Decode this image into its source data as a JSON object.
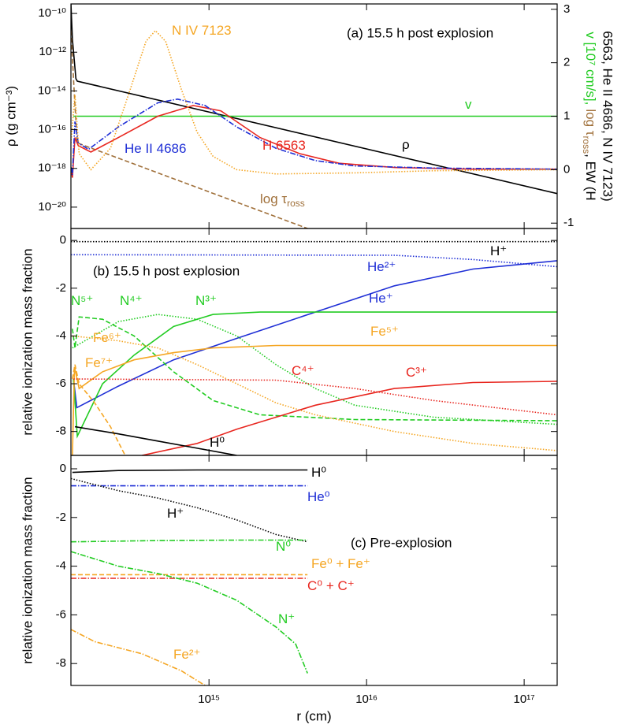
{
  "chart_data": [
    {
      "type": "line",
      "annotation": "(a) 15.5 h post explosion",
      "y_label": "ρ  (g cm⁻³)",
      "y2_label_parts": [
        "v [10⁷ cm/s],",
        "log τ",
        "ross",
        ", EW (H"
      ],
      "y2_label_line2": "6563, He II 4686, N IV 7123)",
      "ylog": true,
      "ylim": [
        7.9e-22,
        3.1e-10
      ],
      "yticks": [
        {
          "value": 1e-10,
          "label": "10⁻¹⁰"
        },
        {
          "value": 1e-12,
          "label": "10⁻¹²"
        },
        {
          "value": 1e-14,
          "label": "10⁻¹⁴"
        },
        {
          "value": 1e-16,
          "label": "10⁻¹⁶"
        },
        {
          "value": 1e-18,
          "label": "10⁻¹⁸"
        },
        {
          "value": 1e-20,
          "label": "10⁻²⁰"
        }
      ],
      "y2lim": [
        -1.1,
        3.1
      ],
      "y2ticks": [
        -1,
        0,
        1,
        2,
        3
      ],
      "series": [
        {
          "name": "ρ",
          "color": "#000000",
          "dash": "solid",
          "axis": "y",
          "x": [
            133000000000000.0,
            136000000000000.0,
            143000000000000.0,
            146000000000000.0,
            1.62e+17
          ],
          "values": [
            3.1e-10,
            4.6e-12,
            4.3e-14,
            3.2e-14,
            5e-20
          ]
        },
        {
          "name": "log τ",
          "name_sub": "ross",
          "color": "#a0703a",
          "dash": "dashed",
          "axis": "y2",
          "x": [
            133000000000000.0,
            141000000000000.0,
            146000000000000.0,
            4220000000000000.0
          ],
          "values": [
            2.6,
            1.2,
            0.5,
            -1.1
          ]
        },
        {
          "name": "v",
          "color": "#22cc22",
          "dash": "solid",
          "axis": "y2",
          "x": [
            138000000000000.0,
            1.62e+17
          ],
          "values": [
            1.0,
            1.0
          ]
        },
        {
          "name": "H 6563",
          "color": "#e8261f",
          "dash": "solid",
          "axis": "y2",
          "x": [
            133000000000000.0,
            136000000000000.0,
            141000000000000.0,
            148000000000000.0,
            178000000000000.0,
            266000000000000.0,
            473000000000000.0,
            794000000000000.0,
            1190000000000000.0,
            2110000000000000.0,
            3760000000000000.0,
            6680000000000000.0,
            1.5e+16,
            4.73e+16,
            1.62e+17
          ],
          "values": [
            0.05,
            -0.15,
            0.6,
            0.45,
            0.33,
            0.6,
            1.0,
            1.2,
            1.1,
            0.6,
            0.3,
            0.12,
            0.04,
            0.01,
            0.01
          ]
        },
        {
          "name": "He II 4686",
          "color": "#1f2fd6",
          "dash": "dashdot",
          "axis": "y2",
          "x": [
            133000000000000.0,
            136000000000000.0,
            141000000000000.0,
            148000000000000.0,
            172000000000000.0,
            266000000000000.0,
            473000000000000.0,
            631000000000000.0,
            944000000000000.0,
            1500000000000000.0,
            2660000000000000.0,
            4730000000000000.0,
            8410000000000000.0,
            2.66e+16,
            1.62e+17
          ],
          "values": [
            0.05,
            -0.1,
            0.9,
            0.5,
            0.38,
            0.8,
            1.25,
            1.32,
            1.2,
            0.8,
            0.4,
            0.17,
            0.07,
            0.03,
            0.01
          ]
        },
        {
          "name": "N IV 7123",
          "color": "#f5a623",
          "dash": "dotted",
          "axis": "y2",
          "x": [
            133000000000000.0,
            141000000000000.0,
            150000000000000.0,
            178000000000000.0,
            237000000000000.0,
            316000000000000.0,
            398000000000000.0,
            457000000000000.0,
            531000000000000.0,
            668000000000000.0,
            841000000000000.0,
            1060000000000000.0,
            1500000000000000.0,
            2660000000000000.0,
            8410000000000000.0,
            2.66e+16,
            1.62e+17
          ],
          "values": [
            0.5,
            1.4,
            0.3,
            0.0,
            0.4,
            1.5,
            2.4,
            2.6,
            2.4,
            1.5,
            0.7,
            0.25,
            0.0,
            -0.08,
            -0.06,
            -0.02,
            0.0
          ]
        }
      ]
    },
    {
      "type": "line",
      "annotation": "(b) 15.5 h post explosion",
      "y_label": "relative ionization mass fraction",
      "ylim": [
        -9,
        0.5
      ],
      "yticks": [
        -8,
        -6,
        -4,
        -2,
        0
      ],
      "series": [
        {
          "name": "H⁺",
          "color": "#000000",
          "dash": "dotted",
          "x": [
            133000000000000.0,
            1.62e+17
          ],
          "values": [
            -0.05,
            -0.05
          ]
        },
        {
          "name": "He²⁺",
          "color": "#1f2fd6",
          "dash": "dotted",
          "x": [
            133000000000000.0,
            1.5e+16,
            4.73e+16,
            1.62e+17
          ],
          "values": [
            -0.6,
            -0.62,
            -0.8,
            -1.1
          ]
        },
        {
          "name": "He⁺",
          "color": "#1f2fd6",
          "dash": "solid",
          "x": [
            138000000000000.0,
            145000000000000.0,
            266000000000000.0,
            596000000000000.0,
            1500000000000000.0,
            4730000000000000.0,
            1.5e+16,
            4.73e+16,
            1.62e+17
          ],
          "values": [
            -5.8,
            -7.0,
            -6.1,
            -5.0,
            -4.1,
            -3.0,
            -1.9,
            -1.2,
            -0.85
          ]
        },
        {
          "name": "N⁵⁺",
          "color": "#22cc22",
          "dash": "dashed",
          "x": [
            136000000000000.0,
            141000000000000.0,
            150000000000000.0,
            211000000000000.0,
            335000000000000.0,
            596000000000000.0,
            1060000000000000.0,
            2110000000000000.0,
            8410000000000000.0,
            1.62e+17
          ],
          "values": [
            -3.7,
            -4.5,
            -3.2,
            -3.3,
            -4.0,
            -5.5,
            -6.7,
            -7.3,
            -7.5,
            -7.55
          ]
        },
        {
          "name": "N⁴⁺",
          "color": "#22cc22",
          "dash": "dotted",
          "x": [
            136000000000000.0,
            266000000000000.0,
            473000000000000.0,
            841000000000000.0,
            1500000000000000.0,
            2660000000000000.0,
            4730000000000000.0,
            8410000000000000.0,
            2.66e+16,
            1.62e+17
          ],
          "values": [
            -4.5,
            -3.4,
            -3.1,
            -3.3,
            -4.0,
            -5.2,
            -6.2,
            -6.9,
            -7.4,
            -7.7
          ]
        },
        {
          "name": "N³⁺",
          "color": "#22cc22",
          "dash": "solid",
          "x": [
            138000000000000.0,
            146000000000000.0,
            211000000000000.0,
            335000000000000.0,
            596000000000000.0,
            1060000000000000.0,
            2110000000000000.0,
            1.62e+17
          ],
          "values": [
            -5.8,
            -8.2,
            -6.0,
            -4.8,
            -3.6,
            -3.1,
            -3.0,
            -3.0
          ]
        },
        {
          "name": "Fe⁵⁺",
          "color": "#f5a623",
          "dash": "solid",
          "x": [
            136000000000000.0,
            140000000000000.0,
            150000000000000.0,
            211000000000000.0,
            335000000000000.0,
            596000000000000.0,
            1060000000000000.0,
            2660000000000000.0,
            1.62e+17
          ],
          "values": [
            -9,
            -5.3,
            -6.2,
            -5.5,
            -5.0,
            -4.7,
            -4.5,
            -4.4,
            -4.4
          ]
        },
        {
          "name": "Fe⁶⁺",
          "color": "#f5a623",
          "dash": "dotted",
          "x": [
            136000000000000.0,
            266000000000000.0,
            473000000000000.0,
            841000000000000.0,
            1500000000000000.0,
            2660000000000000.0,
            4730000000000000.0,
            1.5e+16,
            4.73e+16,
            1.62e+17
          ],
          "values": [
            -4.0,
            -4.2,
            -4.5,
            -5.2,
            -6.0,
            -6.8,
            -7.3,
            -8.0,
            -8.5,
            -8.8
          ]
        },
        {
          "name": "Fe⁷⁺",
          "color": "#f5a623",
          "dash": "dashed",
          "x": [
            136000000000000.0,
            141000000000000.0,
            150000000000000.0,
            188000000000000.0,
            237000000000000.0,
            299000000000000.0
          ],
          "values": [
            -5.8,
            -5.2,
            -6.0,
            -6.8,
            -7.8,
            -9.1
          ]
        },
        {
          "name": "C⁴⁺",
          "color": "#e8261f",
          "dash": "dotted",
          "x": [
            138000000000000.0,
            2660000000000000.0,
            8410000000000000.0,
            2.66e+16,
            1.62e+17
          ],
          "values": [
            -5.8,
            -5.85,
            -6.2,
            -6.7,
            -7.3
          ]
        },
        {
          "name": "C³⁺",
          "color": "#e8261f",
          "dash": "solid",
          "x": [
            376000000000000.0,
            841000000000000.0,
            1500000000000000.0,
            4730000000000000.0,
            1.5e+16,
            4.73e+16,
            1.62e+17
          ],
          "values": [
            -9,
            -8.5,
            -7.9,
            -6.9,
            -6.2,
            -5.95,
            -5.9
          ]
        },
        {
          "name": "H⁰",
          "color": "#000000",
          "dash": "solid",
          "x": [
            141000000000000.0,
            266000000000000.0,
            473000000000000.0,
            841000000000000.0,
            1500000000000000.0
          ],
          "values": [
            -7.8,
            -8.1,
            -8.4,
            -8.7,
            -9.0
          ]
        }
      ]
    },
    {
      "type": "line",
      "annotation": "(c) Pre-explosion",
      "y_label": "relative ionization mass fraction",
      "x_label": "r (cm)",
      "xlog": true,
      "xlim": [
        133000000000000.0,
        1.62e+17
      ],
      "xticks": [
        {
          "value": 1000000000000000.0,
          "label": "10¹⁵"
        },
        {
          "value": 1e+16,
          "label": "10¹⁶"
        },
        {
          "value": 1e+17,
          "label": "10¹⁷"
        }
      ],
      "ylim": [
        -8.9,
        0.55
      ],
      "yticks": [
        -8,
        -6,
        -4,
        -2,
        0
      ],
      "series": [
        {
          "name": "H⁰",
          "color": "#000000",
          "dash": "solid",
          "x": [
            136000000000000.0,
            266000000000000.0,
            841000000000000.0,
            4220000000000000.0
          ],
          "values": [
            -0.15,
            -0.07,
            -0.05,
            -0.05
          ]
        },
        {
          "name": "He⁰",
          "color": "#1f2fd6",
          "dash": "dashdot",
          "x": [
            133000000000000.0,
            4220000000000000.0
          ],
          "values": [
            -0.7,
            -0.7
          ]
        },
        {
          "name": "H⁺",
          "color": "#000000",
          "dash": "dotted",
          "x": [
            133000000000000.0,
            266000000000000.0,
            473000000000000.0,
            841000000000000.0,
            1500000000000000.0,
            2660000000000000.0,
            4220000000000000.0
          ],
          "values": [
            -0.4,
            -0.9,
            -1.2,
            -1.6,
            -2.1,
            -2.7,
            -3.0
          ]
        },
        {
          "name": "N⁰",
          "color": "#22cc22",
          "dash": "dashdot",
          "x": [
            133000000000000.0,
            473000000000000.0,
            1500000000000000.0,
            4220000000000000.0
          ],
          "values": [
            -3.0,
            -2.95,
            -2.93,
            -2.93
          ]
        },
        {
          "name": "Fe⁰ + Fe⁺",
          "color": "#f5a623",
          "dash": "dashed",
          "x": [
            133000000000000.0,
            4220000000000000.0
          ],
          "values": [
            -4.35,
            -4.35
          ]
        },
        {
          "name": "C⁰ + C⁺",
          "color": "#e8261f",
          "dash": "dashdot",
          "x": [
            133000000000000.0,
            4220000000000000.0
          ],
          "values": [
            -4.5,
            -4.5
          ]
        },
        {
          "name": "N⁺",
          "color": "#22cc22",
          "dash": "dashdot",
          "x": [
            133000000000000.0,
            266000000000000.0,
            473000000000000.0,
            841000000000000.0,
            1500000000000000.0,
            2660000000000000.0,
            3550000000000000.0,
            4220000000000000.0
          ],
          "values": [
            -3.4,
            -4.0,
            -4.3,
            -4.7,
            -5.4,
            -6.5,
            -7.2,
            -8.4
          ]
        },
        {
          "name": "Fe²⁺",
          "color": "#f5a623",
          "dash": "dashdot",
          "x": [
            133000000000000.0,
            188000000000000.0,
            376000000000000.0,
            668000000000000.0,
            944000000000000.0
          ],
          "values": [
            -6.6,
            -7.1,
            -7.6,
            -8.3,
            -8.9
          ]
        }
      ]
    }
  ]
}
